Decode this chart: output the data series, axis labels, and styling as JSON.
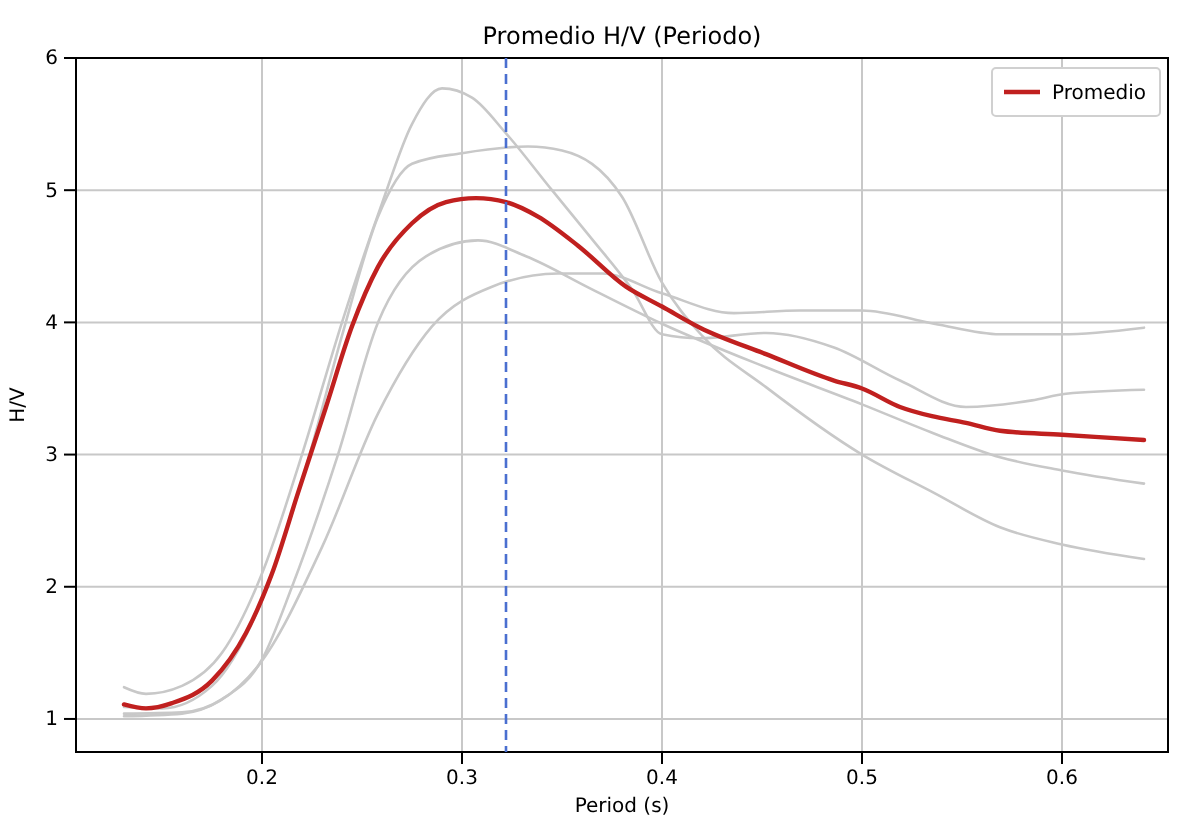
{
  "chart_data": {
    "type": "line",
    "title": "Promedio H/V (Periodo)",
    "xlabel": "Period (s)",
    "ylabel": "H/V",
    "xlim": [
      0.107,
      0.653
    ],
    "ylim": [
      0.75,
      6.0
    ],
    "xticks": [
      0.2,
      0.3,
      0.4,
      0.5,
      0.6
    ],
    "yticks": [
      1,
      2,
      3,
      4,
      5,
      6
    ],
    "grid": true,
    "legend": "top right",
    "line_style": "solid",
    "ref_lines": [
      {
        "axis": "x",
        "value": 0.322,
        "color": "#4a6fd0",
        "line_style": "dashed"
      }
    ],
    "series": [
      {
        "color": "#c8c8c8",
        "x": [
          0.131,
          0.142,
          0.16,
          0.18,
          0.2,
          0.22,
          0.24,
          0.26,
          0.275,
          0.29,
          0.305,
          0.322,
          0.345,
          0.365,
          0.385,
          0.4,
          0.419,
          0.452,
          0.486,
          0.519,
          0.552,
          0.585,
          0.602,
          0.641
        ],
        "values": [
          1.24,
          1.19,
          1.25,
          1.5,
          2.1,
          3.0,
          4.0,
          4.9,
          5.5,
          5.77,
          5.7,
          5.43,
          5.0,
          4.63,
          4.25,
          3.91,
          3.88,
          3.92,
          3.81,
          3.56,
          3.36,
          3.41,
          3.46,
          3.49
        ]
      },
      {
        "color": "#c8c8c8",
        "x": [
          0.131,
          0.15,
          0.175,
          0.2,
          0.22,
          0.24,
          0.258,
          0.275,
          0.3,
          0.333,
          0.35,
          0.38,
          0.4,
          0.42,
          0.452,
          0.5,
          0.536,
          0.569,
          0.6,
          0.641
        ],
        "values": [
          1.09,
          1.08,
          1.25,
          1.9,
          2.8,
          3.9,
          4.8,
          5.2,
          5.28,
          5.33,
          5.3,
          4.95,
          4.3,
          3.9,
          3.51,
          3.0,
          2.71,
          2.45,
          2.32,
          2.21
        ]
      },
      {
        "color": "#c8c8c8",
        "x": [
          0.131,
          0.16,
          0.18,
          0.2,
          0.215,
          0.238,
          0.258,
          0.282,
          0.308,
          0.332,
          0.365,
          0.4,
          0.452,
          0.5,
          0.536,
          0.569,
          0.6,
          0.641
        ],
        "values": [
          1.04,
          1.05,
          1.15,
          1.45,
          2.0,
          3.0,
          4.0,
          4.5,
          4.62,
          4.5,
          4.25,
          3.99,
          3.66,
          3.38,
          3.16,
          2.98,
          2.88,
          2.78
        ]
      },
      {
        "color": "#c8c8c8",
        "x": [
          0.131,
          0.16,
          0.198,
          0.23,
          0.258,
          0.285,
          0.315,
          0.348,
          0.37,
          0.4,
          0.436,
          0.469,
          0.5,
          0.536,
          0.569,
          0.6,
          0.641
        ],
        "values": [
          1.02,
          1.04,
          1.4,
          2.3,
          3.31,
          3.97,
          4.27,
          4.37,
          4.37,
          4.22,
          4.07,
          4.09,
          4.09,
          3.99,
          3.91,
          3.91,
          3.96
        ]
      },
      {
        "name": "Promedio",
        "color": "#c0201f",
        "x": [
          0.131,
          0.142,
          0.155,
          0.175,
          0.192,
          0.205,
          0.218,
          0.232,
          0.245,
          0.258,
          0.275,
          0.292,
          0.307,
          0.322,
          0.338,
          0.358,
          0.382,
          0.4,
          0.419,
          0.452,
          0.486,
          0.5,
          0.519,
          0.535,
          0.552,
          0.569,
          0.6,
          0.641
        ],
        "values": [
          1.11,
          1.08,
          1.12,
          1.29,
          1.65,
          2.1,
          2.71,
          3.36,
          3.97,
          4.42,
          4.75,
          4.91,
          4.94,
          4.91,
          4.8,
          4.58,
          4.27,
          4.12,
          3.96,
          3.76,
          3.56,
          3.5,
          3.36,
          3.29,
          3.24,
          3.18,
          3.15,
          3.11
        ]
      }
    ]
  }
}
